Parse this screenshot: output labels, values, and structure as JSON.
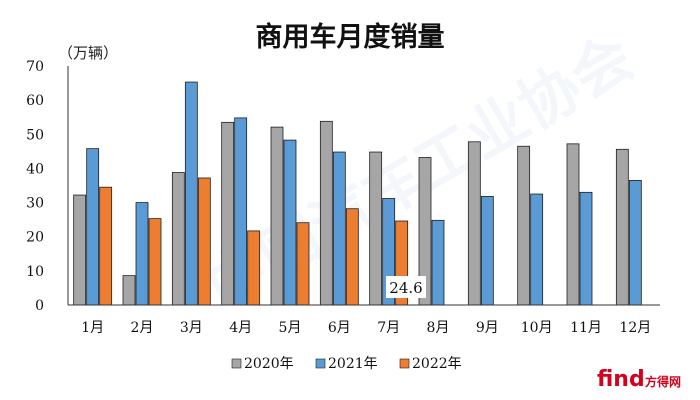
{
  "chart_data": {
    "type": "bar",
    "title": "商用车月度销量",
    "unit_label": "（万辆）",
    "ylim": [
      0,
      70
    ],
    "yticks": [
      0,
      10,
      20,
      30,
      40,
      50,
      60,
      70
    ],
    "grid": false,
    "legend_position": "bottom",
    "categories": [
      "1月",
      "2月",
      "3月",
      "4月",
      "5月",
      "6月",
      "7月",
      "8月",
      "9月",
      "10月",
      "11月",
      "12月"
    ],
    "series": [
      {
        "name": "2020年",
        "color": "#a6a6a6",
        "values": [
          32.2,
          8.6,
          38.8,
          53.5,
          52.1,
          53.8,
          44.8,
          43.2,
          47.8,
          46.5,
          47.2,
          45.6
        ]
      },
      {
        "name": "2021年",
        "color": "#5b9bd5",
        "values": [
          45.8,
          30.0,
          65.3,
          54.8,
          48.3,
          44.8,
          31.2,
          24.8,
          31.8,
          32.5,
          33.0,
          36.5
        ]
      },
      {
        "name": "2022年",
        "color": "#ed7d31",
        "values": [
          34.5,
          25.3,
          37.2,
          21.7,
          24.1,
          28.2,
          24.6,
          null,
          null,
          null,
          null,
          null
        ]
      }
    ],
    "annotation": {
      "text": "24.6",
      "category_index": 6
    }
  },
  "watermark": {
    "text": "中国汽车工业协会"
  },
  "brand": {
    "logo_text": "find",
    "site_text": "方得网"
  }
}
